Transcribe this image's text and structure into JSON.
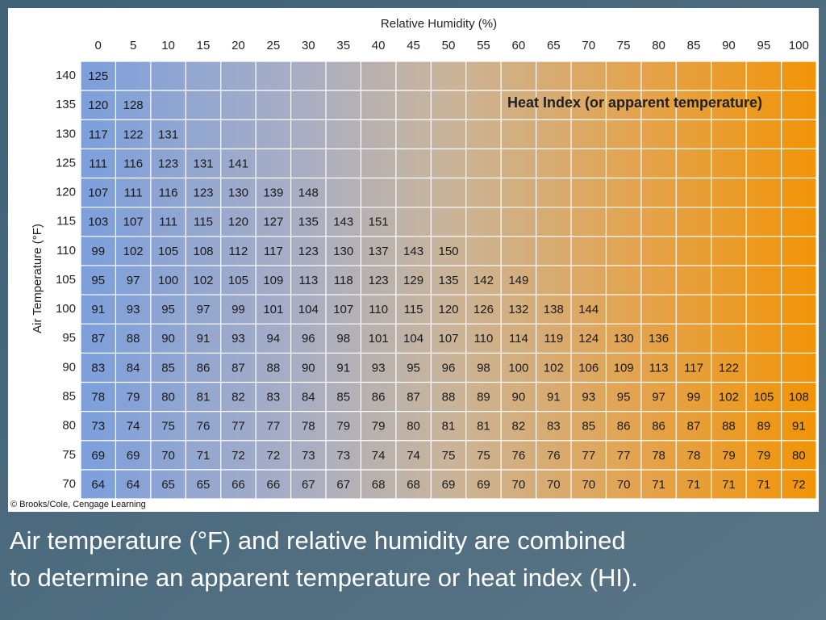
{
  "header": {
    "column_title": "Relative Humidity (%)",
    "row_title": "Air Temperature (°F)",
    "heading": "Heat Index (or apparent temperature)"
  },
  "table": {
    "columns": [
      0,
      5,
      10,
      15,
      20,
      25,
      30,
      35,
      40,
      45,
      50,
      55,
      60,
      65,
      70,
      75,
      80,
      85,
      90,
      95,
      100
    ],
    "rows": [
      {
        "temperature": 140,
        "values": [
          125
        ]
      },
      {
        "temperature": 135,
        "values": [
          120,
          128
        ]
      },
      {
        "temperature": 130,
        "values": [
          117,
          122,
          131
        ]
      },
      {
        "temperature": 125,
        "values": [
          111,
          116,
          123,
          131,
          141
        ]
      },
      {
        "temperature": 120,
        "values": [
          107,
          111,
          116,
          123,
          130,
          139,
          148
        ]
      },
      {
        "temperature": 115,
        "values": [
          103,
          107,
          111,
          115,
          120,
          127,
          135,
          143,
          151
        ]
      },
      {
        "temperature": 110,
        "values": [
          99,
          102,
          105,
          108,
          112,
          117,
          123,
          130,
          137,
          143,
          150
        ]
      },
      {
        "temperature": 105,
        "values": [
          95,
          97,
          100,
          102,
          105,
          109,
          113,
          118,
          123,
          129,
          135,
          142,
          149
        ]
      },
      {
        "temperature": 100,
        "values": [
          91,
          93,
          95,
          97,
          99,
          101,
          104,
          107,
          110,
          115,
          120,
          126,
          132,
          138,
          144
        ]
      },
      {
        "temperature": 95,
        "values": [
          87,
          88,
          90,
          91,
          93,
          94,
          96,
          98,
          101,
          104,
          107,
          110,
          114,
          119,
          124,
          130,
          136
        ]
      },
      {
        "temperature": 90,
        "values": [
          83,
          84,
          85,
          86,
          87,
          88,
          90,
          91,
          93,
          95,
          96,
          98,
          100,
          102,
          106,
          109,
          113,
          117,
          122
        ]
      },
      {
        "temperature": 85,
        "values": [
          78,
          79,
          80,
          81,
          82,
          83,
          84,
          85,
          86,
          87,
          88,
          89,
          90,
          91,
          93,
          95,
          97,
          99,
          102,
          105,
          108
        ]
      },
      {
        "temperature": 80,
        "values": [
          73,
          74,
          75,
          76,
          77,
          77,
          78,
          79,
          79,
          80,
          81,
          81,
          82,
          83,
          85,
          86,
          86,
          87,
          88,
          89,
          91
        ]
      },
      {
        "temperature": 75,
        "values": [
          69,
          69,
          70,
          71,
          72,
          72,
          73,
          73,
          74,
          74,
          75,
          75,
          76,
          76,
          77,
          77,
          78,
          78,
          79,
          79,
          80
        ]
      },
      {
        "temperature": 70,
        "values": [
          64,
          64,
          65,
          65,
          66,
          66,
          67,
          67,
          68,
          68,
          69,
          69,
          70,
          70,
          70,
          70,
          71,
          71,
          71,
          71,
          72
        ]
      }
    ]
  },
  "credit": "© Brooks/Cole, Cengage Learning",
  "caption": [
    "Air temperature (°F) and relative humidity are combined",
    "to determine an apparent temperature or heat index (HI)."
  ]
}
